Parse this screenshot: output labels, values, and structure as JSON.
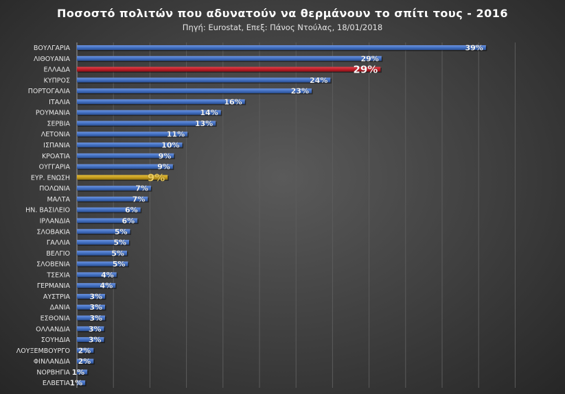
{
  "chart_data": {
    "type": "bar",
    "orientation": "horizontal",
    "title": "Ποσοστό πολιτών που αδυνατούν να θερμάνουν το σπίτι τους - 2016",
    "subtitle": "Πηγή: Eurostat,  Επεξ: Πάνος Ντούλας,  18/01/2018",
    "xlim": [
      0,
      45
    ],
    "grid": "vertical",
    "colors": {
      "default": "#4472c4",
      "greece": "#c0202a",
      "eu": "#c9a020"
    },
    "categories": [
      "ΒΟΥΛΓΑΡΙΑ",
      "ΛΙΘΟΥΑΝΙΑ",
      "ΕΛΛΑΔΑ",
      "ΚΥΠΡΟΣ",
      "ΠΟΡΤΟΓΑΛΙΑ",
      "ΙΤΑΛΙΑ",
      "ΡΟΥΜΑΝΙΑ",
      "ΣΕΡΒΙΑ",
      "ΛΕΤΟΝΙΑ",
      "ΙΣΠΑΝΙΑ",
      "ΚΡΟΑΤΙΑ",
      "ΟΥΓΓΑΡΙΑ",
      "ΕΥΡ. ΕΝΩΣΗ",
      "ΠΟΛΩΝΙΑ",
      "ΜΑΛΤΑ",
      "ΗΝ. ΒΑΣΙΛΕΙΟ",
      "ΙΡΛΑΝΔΙΑ",
      "ΣΛΟΒΑΚΙΑ",
      "ΓΑΛΛΙΑ",
      "ΒΕΛΓΙΟ",
      "ΣΛΟΒΕΝΙΑ",
      "ΤΣΕΧΙΑ",
      "ΓΕΡΜΑΝΙΑ",
      "ΑΥΣΤΡΙΑ",
      "ΔΑΝΙΑ",
      "ΕΣΘΟΝΙΑ",
      "ΟΛΛΑΝΔΙΑ",
      "ΣΟΥΗΔΙΑ",
      "ΛΟΥΞΕΜΒΟΥΡΓΟ",
      "ΦΙΝΛΑΝΔΙΑ",
      "ΝΟΡΒΗΓΙΑ",
      "ΕΛΒΕΤΙΑ"
    ],
    "values": [
      39.2,
      29.2,
      29.1,
      24.3,
      22.5,
      16.1,
      13.8,
      13.3,
      10.6,
      10.1,
      9.3,
      9.2,
      8.7,
      7.1,
      6.8,
      6.1,
      5.8,
      5.1,
      5.0,
      4.8,
      4.9,
      3.8,
      3.7,
      2.7,
      2.7,
      2.7,
      2.6,
      2.6,
      1.6,
      1.6,
      1.0,
      0.8
    ],
    "labels": [
      "39%",
      "29%",
      "29%",
      "24%",
      "23%",
      "16%",
      "14%",
      "13%",
      "11%",
      "10%",
      "9%",
      "9%",
      "9%",
      "7%",
      "7%",
      "6%",
      "6%",
      "5%",
      "5%",
      "5%",
      "5%",
      "4%",
      "4%",
      "3%",
      "3%",
      "3%",
      "3%",
      "3%",
      "2%",
      "2%",
      "1%",
      "1%"
    ],
    "highlight": {
      "ΕΛΛΑΔΑ": "greece",
      "ΕΥΡ. ΕΝΩΣΗ": "eu"
    }
  }
}
